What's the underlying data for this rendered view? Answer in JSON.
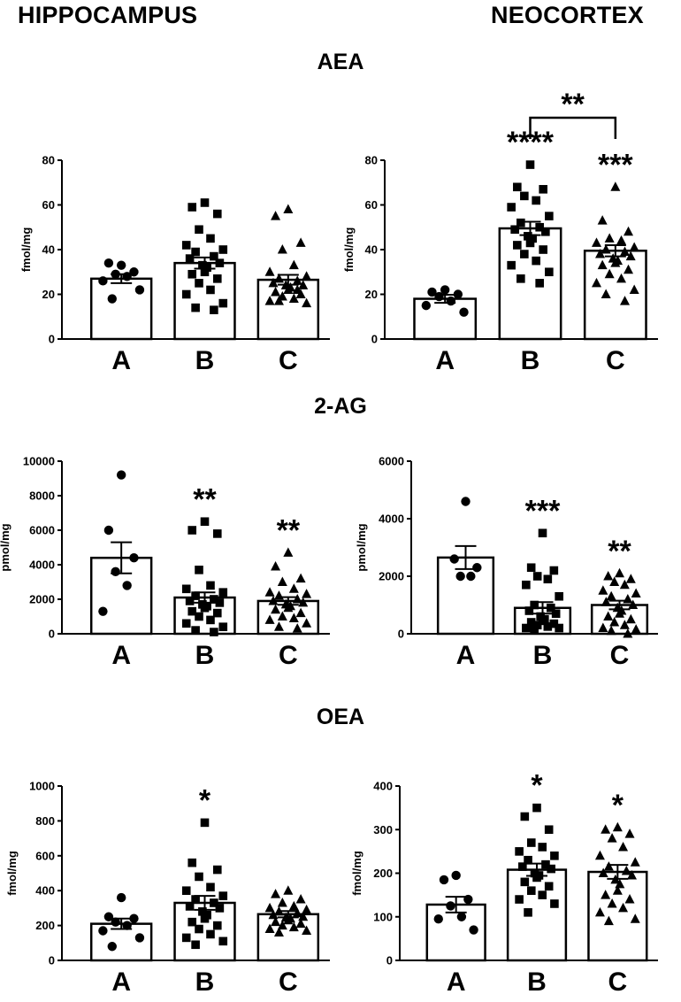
{
  "header": {
    "left_title": "HIPPOCAMPUS",
    "right_title": "NEOCORTEX"
  },
  "rows": {
    "aea": "AEA",
    "ag": "2-AG",
    "oea": "OEA"
  },
  "colors": {
    "bar_fill": "#ffffff",
    "ink": "#000000"
  },
  "chart_data": [
    {
      "type": "bar",
      "title": "AEA",
      "region": "HIPPOCAMPUS",
      "ylabel": "fmol/mg",
      "ylim": [
        0,
        80
      ],
      "yticks": [
        0,
        20,
        40,
        60,
        80
      ],
      "categories": [
        "A",
        "B",
        "C"
      ],
      "means": [
        27,
        34,
        26.5
      ],
      "sems": [
        2,
        2.5,
        2.2
      ],
      "points": [
        [
          33,
          34,
          30,
          29,
          28,
          26,
          22,
          18
        ],
        [
          61,
          59,
          56,
          49,
          45,
          42,
          40,
          39,
          37,
          36,
          34,
          33,
          32,
          30,
          29,
          27,
          25,
          22,
          20,
          16,
          14,
          13
        ],
        [
          58,
          55,
          43,
          40,
          33,
          30,
          28,
          27,
          26,
          25,
          24,
          24,
          23,
          22,
          21,
          20,
          19,
          18,
          17,
          16,
          17,
          22
        ]
      ],
      "markers": [
        "circle",
        "square",
        "triangle"
      ],
      "significance": [
        "",
        "",
        ""
      ]
    },
    {
      "type": "bar",
      "title": "AEA",
      "region": "NEOCORTEX",
      "ylabel": "fmol/mg",
      "ylim": [
        0,
        80
      ],
      "yticks": [
        0,
        20,
        40,
        60,
        80
      ],
      "categories": [
        "A",
        "B",
        "C"
      ],
      "means": [
        18,
        49.5,
        39.5
      ],
      "sems": [
        1.8,
        3,
        2.5
      ],
      "points": [
        [
          22,
          21,
          20,
          19,
          17,
          15,
          12
        ],
        [
          78,
          68,
          67,
          64,
          62,
          59,
          55,
          52,
          50,
          49,
          48,
          46,
          45,
          43,
          42,
          40,
          38,
          35,
          33,
          30,
          27,
          25
        ],
        [
          68,
          53,
          48,
          45,
          44,
          43,
          41,
          40,
          39,
          38,
          37,
          36,
          35,
          34,
          33,
          31,
          29,
          27,
          25,
          22,
          20,
          17
        ]
      ],
      "markers": [
        "circle",
        "square",
        "triangle"
      ],
      "significance": [
        "",
        "****",
        "***"
      ],
      "bracket": {
        "from": 1,
        "to": 2,
        "label": "**"
      }
    },
    {
      "type": "bar",
      "title": "2-AG",
      "region": "HIPPOCAMPUS",
      "ylabel": "pmol/mg",
      "ylim": [
        0,
        10000
      ],
      "yticks": [
        0,
        2000,
        4000,
        6000,
        8000,
        10000
      ],
      "categories": [
        "A",
        "B",
        "C"
      ],
      "means": [
        4400,
        2100,
        1900
      ],
      "sems": [
        900,
        300,
        220
      ],
      "points": [
        [
          9200,
          6000,
          4400,
          3600,
          2800,
          1300
        ],
        [
          6500,
          6000,
          5800,
          3700,
          2800,
          2600,
          2400,
          2200,
          2000,
          1900,
          1800,
          1700,
          1600,
          1500,
          1300,
          1200,
          1000,
          800,
          600,
          400,
          200,
          100
        ],
        [
          4700,
          3900,
          3200,
          3000,
          2600,
          2400,
          2300,
          2200,
          2000,
          1900,
          1800,
          1700,
          1600,
          1500,
          1400,
          1200,
          1000,
          900,
          800,
          600,
          400,
          300
        ]
      ],
      "markers": [
        "circle",
        "square",
        "triangle"
      ],
      "significance": [
        "",
        "**",
        "**"
      ]
    },
    {
      "type": "bar",
      "title": "2-AG",
      "region": "NEOCORTEX",
      "ylabel": "pmol/mg",
      "ylim": [
        0,
        6000
      ],
      "yticks": [
        0,
        2000,
        4000,
        6000
      ],
      "categories": [
        "A",
        "B",
        "C"
      ],
      "means": [
        2650,
        900,
        1000
      ],
      "sems": [
        400,
        200,
        150
      ],
      "points": [
        [
          4600,
          2600,
          2300,
          2000,
          2000
        ],
        [
          3500,
          2300,
          2200,
          2000,
          1900,
          1700,
          1300,
          1000,
          900,
          800,
          700,
          600,
          500,
          450,
          400,
          350,
          300,
          250,
          200,
          200,
          150
        ],
        [
          2100,
          2000,
          1900,
          1800,
          1700,
          1500,
          1400,
          1300,
          1200,
          1100,
          1000,
          900,
          800,
          700,
          600,
          500,
          400,
          300,
          200,
          150,
          100,
          0
        ]
      ],
      "markers": [
        "circle",
        "square",
        "triangle"
      ],
      "significance": [
        "",
        "***",
        "**"
      ]
    },
    {
      "type": "bar",
      "title": "OEA",
      "region": "HIPPOCAMPUS",
      "ylabel": "fmol/mg",
      "ylim": [
        0,
        1000
      ],
      "yticks": [
        0,
        200,
        400,
        600,
        800,
        1000
      ],
      "categories": [
        "A",
        "B",
        "C"
      ],
      "means": [
        210,
        330,
        265
      ],
      "sems": [
        30,
        40,
        18
      ],
      "points": [
        [
          360,
          250,
          240,
          220,
          200,
          170,
          130,
          80
        ],
        [
          790,
          560,
          520,
          480,
          420,
          400,
          370,
          350,
          330,
          310,
          300,
          280,
          260,
          240,
          220,
          200,
          180,
          150,
          130,
          110,
          90
        ],
        [
          400,
          380,
          350,
          330,
          310,
          300,
          290,
          280,
          270,
          260,
          250,
          245,
          240,
          230,
          220,
          210,
          200,
          190,
          180,
          170,
          160
        ]
      ],
      "markers": [
        "circle",
        "square",
        "triangle"
      ],
      "significance": [
        "",
        "*",
        ""
      ]
    },
    {
      "type": "bar",
      "title": "OEA",
      "region": "NEOCORTEX",
      "ylabel": "fmol/mg",
      "ylim": [
        0,
        400
      ],
      "yticks": [
        0,
        100,
        200,
        300,
        400
      ],
      "categories": [
        "A",
        "B",
        "C"
      ],
      "means": [
        128,
        208,
        203
      ],
      "sems": [
        18,
        14,
        16
      ],
      "points": [
        [
          195,
          185,
          140,
          125,
          100,
          95,
          70
        ],
        [
          350,
          330,
          300,
          270,
          260,
          250,
          240,
          230,
          220,
          215,
          210,
          200,
          195,
          190,
          180,
          170,
          160,
          150,
          140,
          130,
          110
        ],
        [
          305,
          300,
          290,
          280,
          260,
          240,
          225,
          215,
          205,
          200,
          195,
          185,
          175,
          160,
          150,
          140,
          130,
          120,
          110,
          95,
          90
        ]
      ],
      "markers": [
        "circle",
        "square",
        "triangle"
      ],
      "significance": [
        "",
        "*",
        "*"
      ]
    }
  ]
}
